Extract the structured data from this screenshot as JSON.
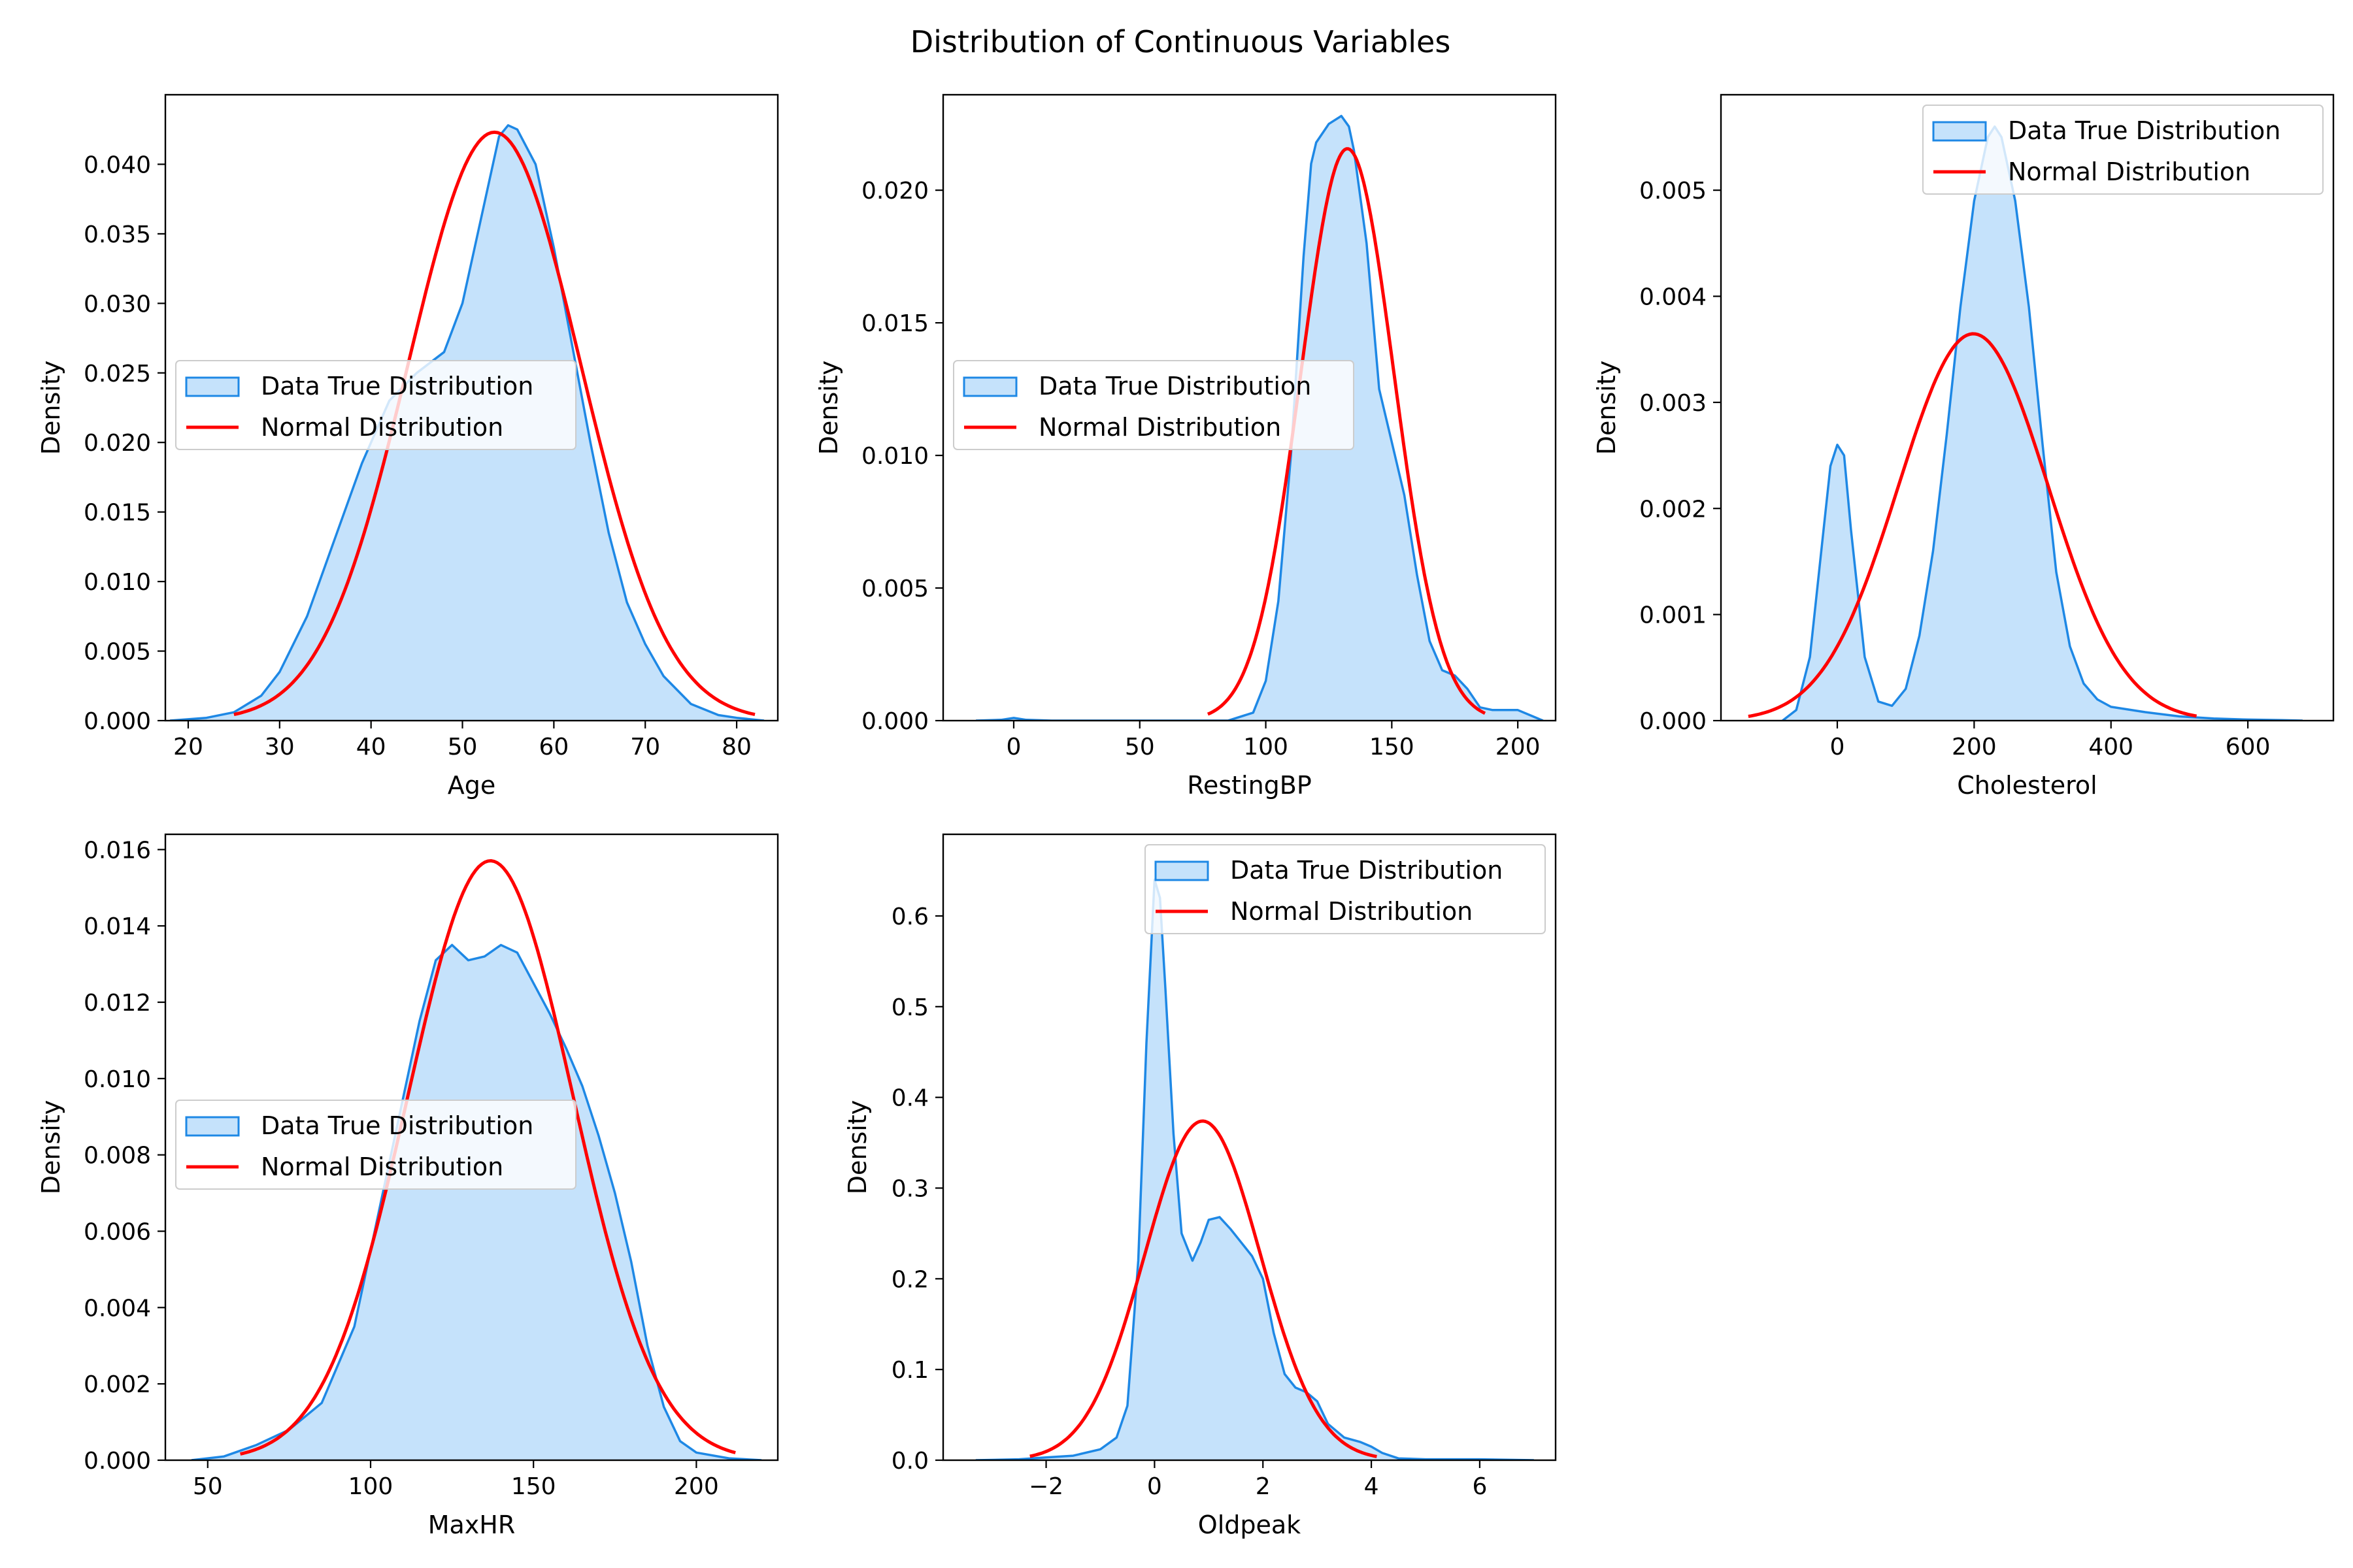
{
  "title": "Distribution of Continuous Variables",
  "colors": {
    "kde_line": "#1e88e5",
    "kde_fill": "#c5e2fb",
    "normal_line": "#ff0000",
    "axis": "#000000"
  },
  "legend_labels": {
    "kde": "Data True Distribution",
    "normal": "Normal Distribution"
  },
  "chart_data": [
    {
      "type": "area",
      "xlabel": "Age",
      "ylabel": "Density",
      "xlim": [
        17.5,
        84.5
      ],
      "ylim": [
        0,
        0.045
      ],
      "xticks": [
        20,
        30,
        40,
        50,
        60,
        70,
        80
      ],
      "yticks": [
        0.0,
        0.005,
        0.01,
        0.015,
        0.02,
        0.025,
        0.03,
        0.035,
        0.04
      ],
      "ytick_labels": [
        "0.000",
        "0.005",
        "0.010",
        "0.015",
        "0.020",
        "0.025",
        "0.030",
        "0.035",
        "0.040"
      ],
      "legend": "center-left",
      "series": [
        {
          "name": "Data True Distribution",
          "kind": "kde",
          "x": [
            18,
            22,
            25,
            28,
            30,
            33,
            36,
            39,
            42,
            45,
            48,
            50,
            52,
            54,
            55,
            56,
            58,
            60,
            62,
            64,
            66,
            68,
            70,
            72,
            75,
            78,
            80,
            83
          ],
          "y": [
            0.0,
            0.0002,
            0.0006,
            0.0018,
            0.0035,
            0.0075,
            0.013,
            0.0185,
            0.023,
            0.025,
            0.0265,
            0.03,
            0.036,
            0.042,
            0.0428,
            0.0425,
            0.04,
            0.034,
            0.027,
            0.02,
            0.0135,
            0.0085,
            0.0055,
            0.0032,
            0.0012,
            0.0004,
            0.0002,
            0.0
          ]
        },
        {
          "name": "Normal Distribution",
          "kind": "normal",
          "mean": 53.5,
          "sd": 9.43,
          "x_range": [
            25,
            82
          ]
        }
      ]
    },
    {
      "type": "area",
      "xlabel": "RestingBP",
      "ylabel": "Density",
      "xlim": [
        -28,
        215
      ],
      "ylim": [
        0,
        0.0236
      ],
      "xticks": [
        0,
        50,
        100,
        150,
        200
      ],
      "yticks": [
        0.0,
        0.005,
        0.01,
        0.015,
        0.02
      ],
      "ytick_labels": [
        "0.000",
        "0.005",
        "0.010",
        "0.015",
        "0.020"
      ],
      "legend": "center-left",
      "series": [
        {
          "name": "Data True Distribution",
          "kind": "kde",
          "x": [
            -15,
            -5,
            0,
            5,
            15,
            30,
            60,
            85,
            95,
            100,
            105,
            110,
            115,
            118,
            120,
            125,
            130,
            133,
            135,
            140,
            145,
            150,
            155,
            160,
            165,
            170,
            175,
            180,
            185,
            190,
            195,
            200,
            205,
            210
          ],
          "y": [
            0.0,
            3e-05,
            0.0001,
            3e-05,
            0.0,
            0.0,
            0.0,
            0.0,
            0.0003,
            0.0015,
            0.0045,
            0.01,
            0.0175,
            0.021,
            0.0218,
            0.0225,
            0.0228,
            0.0224,
            0.0215,
            0.018,
            0.0125,
            0.0105,
            0.0085,
            0.0055,
            0.003,
            0.0019,
            0.0017,
            0.0012,
            0.0005,
            0.0004,
            0.0004,
            0.0004,
            0.0002,
            0.0
          ]
        },
        {
          "name": "Normal Distribution",
          "kind": "normal",
          "mean": 132.4,
          "sd": 18.5,
          "x_range": [
            77,
            187
          ]
        }
      ]
    },
    {
      "type": "area",
      "xlabel": "Cholesterol",
      "ylabel": "Density",
      "xlim": [
        -170,
        725
      ],
      "ylim": [
        0,
        0.0059
      ],
      "xticks": [
        0,
        200,
        400,
        600
      ],
      "yticks": [
        0.0,
        0.001,
        0.002,
        0.003,
        0.004,
        0.005
      ],
      "ytick_labels": [
        "0.000",
        "0.001",
        "0.002",
        "0.003",
        "0.004",
        "0.005"
      ],
      "legend": "upper-right",
      "series": [
        {
          "name": "Data True Distribution",
          "kind": "kde",
          "x": [
            -80,
            -60,
            -40,
            -20,
            -10,
            0,
            10,
            20,
            40,
            60,
            80,
            100,
            120,
            140,
            160,
            180,
            200,
            220,
            230,
            240,
            260,
            280,
            300,
            320,
            340,
            360,
            380,
            400,
            450,
            500,
            550,
            600,
            650,
            680
          ],
          "y": [
            0.0,
            0.0001,
            0.0006,
            0.0018,
            0.0024,
            0.0026,
            0.0025,
            0.0018,
            0.0006,
            0.00018,
            0.00014,
            0.0003,
            0.0008,
            0.0016,
            0.0027,
            0.0039,
            0.0049,
            0.0055,
            0.0056,
            0.0055,
            0.0049,
            0.0039,
            0.0026,
            0.0014,
            0.0007,
            0.00035,
            0.0002,
            0.00013,
            8e-05,
            4e-05,
            2e-05,
            1e-05,
            5e-06,
            0.0
          ]
        },
        {
          "name": "Normal Distribution",
          "kind": "normal",
          "mean": 198.8,
          "sd": 109.4,
          "x_range": [
            -130,
            525
          ]
        }
      ]
    },
    {
      "type": "area",
      "xlabel": "MaxHR",
      "ylabel": "Density",
      "xlim": [
        37,
        225
      ],
      "ylim": [
        0,
        0.0164
      ],
      "xticks": [
        50,
        100,
        150,
        200
      ],
      "yticks": [
        0.0,
        0.002,
        0.004,
        0.006,
        0.008,
        0.01,
        0.012,
        0.014,
        0.016
      ],
      "ytick_labels": [
        "0.000",
        "0.002",
        "0.004",
        "0.006",
        "0.008",
        "0.010",
        "0.012",
        "0.014",
        "0.016"
      ],
      "legend": "center-left",
      "series": [
        {
          "name": "Data True Distribution",
          "kind": "kde",
          "x": [
            45,
            55,
            65,
            75,
            85,
            95,
            105,
            115,
            120,
            125,
            130,
            135,
            140,
            145,
            150,
            155,
            160,
            165,
            170,
            175,
            180,
            185,
            190,
            195,
            200,
            210,
            220
          ],
          "y": [
            0.0,
            0.0001,
            0.0004,
            0.0008,
            0.0015,
            0.0035,
            0.0075,
            0.0115,
            0.0131,
            0.0135,
            0.0131,
            0.0132,
            0.0135,
            0.0133,
            0.0125,
            0.0117,
            0.0108,
            0.0098,
            0.0085,
            0.007,
            0.0052,
            0.003,
            0.0014,
            0.0005,
            0.0002,
            5e-05,
            0.0
          ]
        },
        {
          "name": "Normal Distribution",
          "kind": "normal",
          "mean": 136.8,
          "sd": 25.4,
          "x_range": [
            60,
            212
          ]
        }
      ]
    },
    {
      "type": "area",
      "xlabel": "Oldpeak",
      "ylabel": "Density",
      "xlim": [
        -3.9,
        7.4
      ],
      "ylim": [
        0,
        0.69
      ],
      "xticks": [
        -2,
        0,
        2,
        4,
        6
      ],
      "xtick_labels": [
        "−2",
        "0",
        "2",
        "4",
        "6"
      ],
      "yticks": [
        0.0,
        0.1,
        0.2,
        0.3,
        0.4,
        0.5,
        0.6
      ],
      "ytick_labels": [
        "0.0",
        "0.1",
        "0.2",
        "0.3",
        "0.4",
        "0.5",
        "0.6"
      ],
      "legend": "upper-right",
      "series": [
        {
          "name": "Data True Distribution",
          "kind": "kde",
          "x": [
            -3.3,
            -2.5,
            -2.0,
            -1.5,
            -1.0,
            -0.7,
            -0.5,
            -0.3,
            -0.15,
            0.0,
            0.1,
            0.2,
            0.35,
            0.5,
            0.7,
            0.85,
            1.0,
            1.2,
            1.4,
            1.6,
            1.8,
            2.0,
            2.2,
            2.4,
            2.6,
            2.8,
            3.0,
            3.2,
            3.5,
            3.8,
            4.0,
            4.2,
            4.5,
            5.0,
            6.0,
            7.0
          ],
          "y": [
            0.0,
            0.001,
            0.003,
            0.005,
            0.012,
            0.025,
            0.06,
            0.22,
            0.46,
            0.64,
            0.62,
            0.52,
            0.36,
            0.25,
            0.22,
            0.24,
            0.265,
            0.268,
            0.255,
            0.24,
            0.225,
            0.2,
            0.14,
            0.095,
            0.08,
            0.075,
            0.065,
            0.04,
            0.025,
            0.02,
            0.015,
            0.008,
            0.002,
            0.001,
            0.001,
            0.0
          ]
        },
        {
          "name": "Normal Distribution",
          "kind": "normal",
          "mean": 0.887,
          "sd": 1.067,
          "x_range": [
            -2.3,
            4.1
          ]
        }
      ]
    }
  ]
}
